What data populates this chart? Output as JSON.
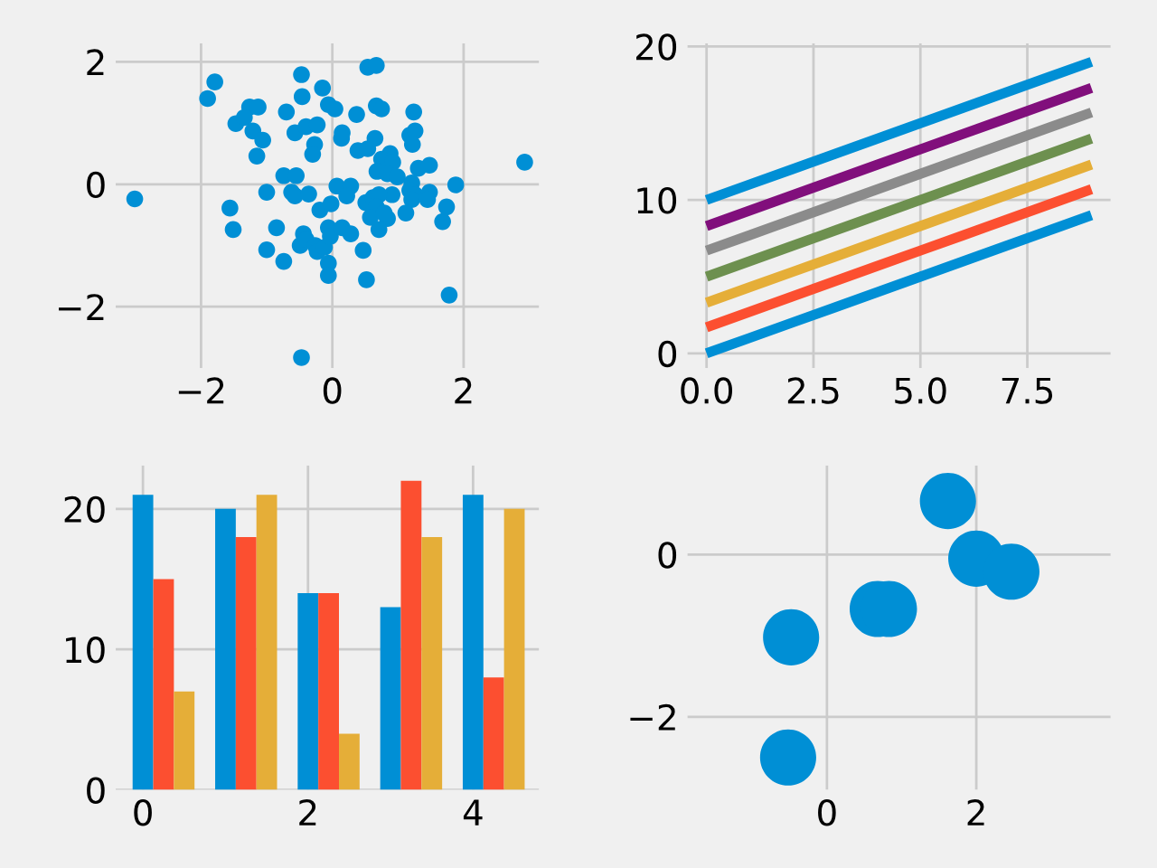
{
  "chart_data": [
    {
      "type": "scatter",
      "marker": "circle",
      "grid": true,
      "xlim": [
        -3.3,
        3.15
      ],
      "ylim": [
        -3.0,
        2.3
      ],
      "xticks": [
        {
          "value": -2,
          "label": "−2"
        },
        0,
        2
      ],
      "yticks": [
        {
          "value": -2,
          "label": "−2"
        },
        0,
        2
      ],
      "series": [
        {
          "color": "#008fd5",
          "x": [
            -3.01,
            2.93,
            -1.9,
            -1.79,
            -0.47,
            1.78,
            -0.47,
            -0.46,
            -0.15,
            0.54,
            0.67,
            -0.06,
            0.04,
            0.67,
            0.75,
            1.24,
            0.37,
            -0.7,
            -1.26,
            -1.13,
            -1.47,
            -1.34,
            -1.21,
            -1.06,
            -1.15,
            -0.57,
            -0.4,
            -0.23,
            -0.27,
            -0.3,
            0.15,
            0.14,
            0.39,
            0.54,
            0.65,
            1.18,
            1.26,
            1.22,
            0.88,
            0.75,
            0.92,
            0.68,
            0.84,
            0.99,
            1.31,
            1.48,
            1.21,
            1.18,
            1.26,
            1.21,
            1.48,
            1.45,
            1.88,
            1.74,
            1.68,
            1.12,
            0.91,
            -0.74,
            -0.55,
            -0.62,
            -0.57,
            -0.36,
            -1.0,
            -1.56,
            -1.51,
            -0.85,
            -1.0,
            -0.74,
            -0.44,
            -0.49,
            -0.4,
            -0.26,
            -0.23,
            -0.12,
            -0.06,
            -0.03,
            -0.06,
            -0.06,
            -0.19,
            -0.02,
            0.07,
            0.28,
            0.22,
            0.15,
            0.28,
            0.47,
            0.52,
            0.51,
            0.62,
            0.71,
            0.67,
            0.58,
            0.84,
            0.71,
            0.79
          ],
          "values": [
            -0.24,
            0.36,
            1.4,
            1.67,
            -2.83,
            -1.81,
            1.79,
            1.43,
            1.57,
            1.91,
            1.94,
            1.3,
            1.23,
            1.28,
            1.23,
            1.18,
            1.14,
            1.18,
            1.26,
            1.26,
            0.99,
            1.09,
            0.87,
            0.72,
            0.46,
            0.84,
            0.94,
            0.97,
            0.65,
            0.49,
            0.84,
            0.75,
            0.55,
            0.58,
            0.75,
            0.8,
            0.87,
            0.65,
            0.5,
            0.41,
            0.36,
            0.21,
            0.17,
            0.12,
            0.26,
            0.31,
            0.02,
            -0.1,
            -0.17,
            -0.25,
            -0.13,
            -0.25,
            -0.01,
            -0.37,
            -0.61,
            -0.47,
            -0.17,
            0.14,
            0.14,
            -0.13,
            -0.19,
            -0.16,
            -0.13,
            -0.39,
            -0.74,
            -0.71,
            -1.07,
            -1.26,
            -0.81,
            -1.0,
            -0.9,
            -1.0,
            -1.1,
            -1.03,
            -0.71,
            -0.85,
            -1.29,
            -1.49,
            -0.42,
            -0.32,
            -0.03,
            -0.03,
            -0.19,
            -0.71,
            -0.81,
            -1.08,
            -1.56,
            -0.3,
            -0.22,
            -0.17,
            -0.37,
            -0.54,
            -0.56,
            -0.74,
            -0.47
          ]
        }
      ]
    },
    {
      "type": "line",
      "marker": "none",
      "line_style": "solid",
      "grid": true,
      "xlim": [
        -0.45,
        9.45
      ],
      "ylim": [
        -0.95,
        20.2
      ],
      "xticks": [
        {
          "value": 0,
          "label": "0.0"
        },
        2.5,
        {
          "value": 5,
          "label": "5.0"
        },
        7.5
      ],
      "yticks": [
        0,
        10,
        20
      ],
      "x": [
        0,
        1,
        2,
        3,
        4,
        5,
        6,
        7,
        8,
        9
      ],
      "series": [
        {
          "color": "#008fd5",
          "values": [
            0,
            1,
            2,
            3,
            4,
            5,
            6,
            7,
            8,
            9
          ]
        },
        {
          "color": "#fc4f30",
          "values": [
            1.7,
            2.7,
            3.7,
            4.7,
            5.7,
            6.7,
            7.7,
            8.7,
            9.7,
            10.7
          ]
        },
        {
          "color": "#e5ae38",
          "values": [
            3.3,
            4.3,
            5.3,
            6.3,
            7.3,
            8.3,
            9.3,
            10.3,
            11.3,
            12.3
          ]
        },
        {
          "color": "#6d904f",
          "values": [
            5,
            6,
            7,
            8,
            9,
            10,
            11,
            12,
            13,
            14
          ]
        },
        {
          "color": "#8b8b8b",
          "values": [
            6.7,
            7.7,
            8.7,
            9.7,
            10.7,
            11.7,
            12.7,
            13.7,
            14.7,
            15.7
          ]
        },
        {
          "color": "#810f7c",
          "values": [
            8.3,
            9.3,
            10.3,
            11.3,
            12.3,
            13.3,
            14.3,
            15.3,
            16.3,
            17.3
          ]
        },
        {
          "color": "#008fd5",
          "values": [
            10,
            11,
            12,
            13,
            14,
            15,
            16,
            17,
            18,
            19
          ]
        }
      ]
    },
    {
      "type": "bar",
      "grid": true,
      "xlim": [
        -0.33,
        4.8
      ],
      "ylim": [
        0,
        23.1
      ],
      "xticks": [
        0,
        2,
        4
      ],
      "yticks": [
        0,
        10,
        20
      ],
      "x": [
        0,
        1,
        2,
        3,
        4
      ],
      "series": [
        {
          "color": "#008fd5",
          "values": [
            21,
            20,
            14,
            13,
            21
          ]
        },
        {
          "color": "#fc4f30",
          "values": [
            15,
            18,
            14,
            22,
            8
          ]
        },
        {
          "color": "#e5ae38",
          "values": [
            7,
            21,
            4,
            18,
            20
          ]
        }
      ]
    },
    {
      "type": "scatter",
      "marker": "circle",
      "grid": true,
      "xlim": [
        -1.87,
        3.8
      ],
      "ylim": [
        -2.9,
        1.1
      ],
      "xticks": [
        0,
        2
      ],
      "yticks": [
        {
          "value": -2,
          "label": "−2"
        },
        0
      ],
      "series": [
        {
          "color": "#008fd5",
          "x": [
            1.62,
            2.0,
            2.47,
            0.68,
            0.83,
            -0.48,
            -0.52
          ],
          "values": [
            0.66,
            -0.05,
            -0.21,
            -0.67,
            -0.67,
            -1.02,
            -2.5
          ]
        }
      ]
    }
  ]
}
